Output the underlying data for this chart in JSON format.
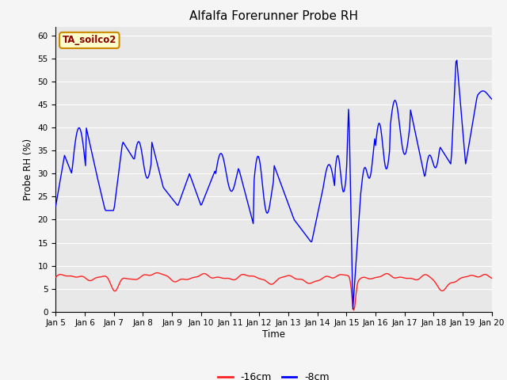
{
  "title": "Alfalfa Forerunner Probe RH",
  "ylabel": "Probe RH (%)",
  "xlabel": "Time",
  "ylim": [
    0,
    62
  ],
  "yticks": [
    0,
    5,
    10,
    15,
    20,
    25,
    30,
    35,
    40,
    45,
    50,
    55,
    60
  ],
  "fig_bg_color": "#f5f5f5",
  "plot_bg_color": "#e8e8e8",
  "legend_labels": [
    "-16cm",
    "-8cm"
  ],
  "legend_colors": [
    "#ff2222",
    "#0000ff"
  ],
  "annotation_text": "TA_soilco2",
  "annotation_bg": "#ffffcc",
  "annotation_border": "#cc8800",
  "annotation_text_color": "#8b0000",
  "x_tick_labels": [
    "Jan 5",
    "Jan 6",
    "Jan 7",
    "Jan 8",
    "Jan 9",
    "Jan 10",
    "Jan 11",
    "Jan 12",
    "Jan 13",
    "Jan 14",
    "Jan 15",
    "Jan 16",
    "Jan 17",
    "Jan 18",
    "Jan 19",
    "Jan 20"
  ],
  "red_line_color": "#ff2222",
  "blue_line_color": "#0000ff",
  "grid_color": "#ffffff",
  "title_fontsize": 11,
  "tick_fontsize": 7.5,
  "label_fontsize": 8.5
}
